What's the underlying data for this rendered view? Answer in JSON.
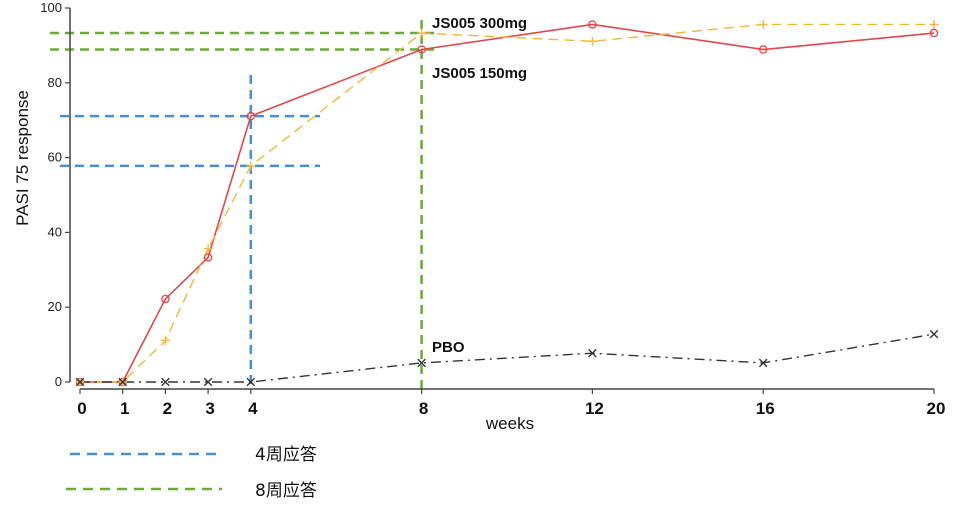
{
  "chart_data": {
    "type": "line",
    "xlabel": "weeks",
    "ylabel": "PASI 75 response",
    "xlim": [
      0,
      20
    ],
    "ylim": [
      0,
      100
    ],
    "x_ticks": [
      0,
      1,
      2,
      3,
      4,
      8,
      12,
      16,
      20
    ],
    "y_ticks": [
      0,
      20,
      40,
      60,
      80,
      100
    ],
    "grid": false,
    "x": [
      0,
      1,
      2,
      3,
      4,
      8,
      12,
      16,
      20
    ],
    "series": [
      {
        "name": "JS005 150mg",
        "color": "#e0474c",
        "style": "solid",
        "marker": "circle",
        "values": [
          0,
          0,
          22.2,
          33.3,
          71.1,
          88.9,
          95.6,
          88.9,
          93.3
        ]
      },
      {
        "name": "JS005 300mg",
        "color": "#f0b83c",
        "style": "dashed",
        "marker": "plus",
        "values": [
          0,
          0,
          11.1,
          35.6,
          57.8,
          93.3,
          91.1,
          95.6,
          95.6
        ]
      },
      {
        "name": "PBO",
        "color": "#333333",
        "style": "dashdot",
        "marker": "x",
        "values": [
          0,
          0,
          0,
          0,
          0,
          5.1,
          7.7,
          5.1,
          12.8
        ]
      }
    ],
    "reference_lines": {
      "week4": {
        "legend": "4周应答",
        "color": "#4a90d0",
        "x": 4,
        "levels": [
          71.1,
          57.8
        ]
      },
      "week8": {
        "legend": "8周应答",
        "color": "#6aaa3a",
        "x": 8,
        "levels": [
          93.3,
          88.9
        ]
      }
    }
  }
}
